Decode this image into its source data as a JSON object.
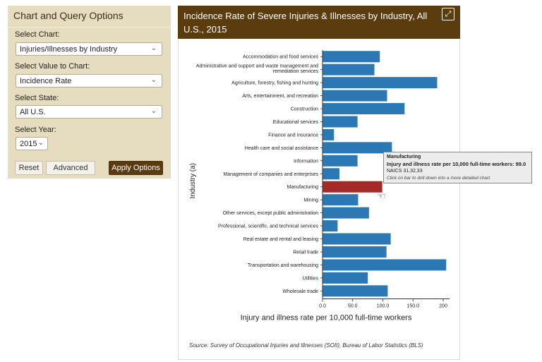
{
  "options": {
    "title": "Chart and Query Options",
    "chart_label": "Select Chart:",
    "chart_value": "Injuries/Illnesses by Industry",
    "value_label": "Select Value to Chart:",
    "value_value": "Incidence Rate",
    "state_label": "Select State:",
    "state_value": "All U.S.",
    "year_label": "Select Year:",
    "year_value": "2015",
    "reset_label": "Reset",
    "advanced_label": "Advanced",
    "apply_label": "Apply Options"
  },
  "card": {
    "title": "Incidence Rate of Severe Injuries & Illnesses by Industry, All U.S., 2015",
    "source": "Source: Survey of Occupational Injuries and Illnesses (SOII), Bureau of Labor Statistics (BLS)"
  },
  "tooltip": {
    "title": "Manufacturing",
    "value_text": "Injury and illness rate per 10,000 full-time workers: 99.0",
    "naics": "NAICS 31,32,33",
    "note": "Click on bar to drill down into a more detailed chart."
  },
  "colors": {
    "bar": "#2b78b5",
    "highlight": "#a42a2a",
    "header": "#5b3c0f"
  },
  "chart_data": {
    "type": "bar",
    "orientation": "horizontal",
    "title": "Incidence Rate of Severe Injuries & Illnesses by Industry, All U.S., 2015",
    "xlabel": "Injury and illness rate per 10,000 full-time workers",
    "ylabel": "Industry (a)",
    "xlim": [
      0,
      200
    ],
    "xticks": [
      "0.0",
      "50.0",
      "100.0",
      "150.0",
      "200"
    ],
    "highlighted": "Manufacturing",
    "categories": [
      "Accommodation and food services",
      "Administrative and support and waste management and remediation services",
      "Agriculture, forestry, fishing and hunting",
      "Arts, entertainment, and recreation",
      "Construction",
      "Educational services",
      "Finance and insurance",
      "Health care and social assistance",
      "Information",
      "Management of companies and enterprises",
      "Manufacturing",
      "Mining",
      "Other services, except public administration",
      "Professional, scientific, and technical services",
      "Real estate and rental and leasing",
      "Retail trade",
      "Transportation and warehousing",
      "Utilities",
      "Wholesale trade"
    ],
    "label_lines": [
      [
        "Accommodation and food services"
      ],
      [
        "Administrative and support and waste management and",
        "remediation services"
      ],
      [
        "Agriculture, forestry, fishing and hunting"
      ],
      [
        "Arts, entertainment, and recreation"
      ],
      [
        "Construction"
      ],
      [
        "Educational services"
      ],
      [
        "Finance and insurance"
      ],
      [
        "Health care and social assistance"
      ],
      [
        "Information"
      ],
      [
        "Management of companies and enterprises"
      ],
      [
        "Manufacturing"
      ],
      [
        "Mining"
      ],
      [
        "Other services, except public administration"
      ],
      [
        "Professional, scientific, and technical services"
      ],
      [
        "Real estate and rental and leasing"
      ],
      [
        "Retail trade"
      ],
      [
        "Transportation and warehousing"
      ],
      [
        "Utilities"
      ],
      [
        "Wholesale trade"
      ]
    ],
    "values": [
      95,
      86,
      190,
      107,
      136,
      58,
      19,
      115,
      58,
      28,
      99.0,
      59,
      77,
      25,
      113,
      106,
      205,
      75,
      108
    ]
  }
}
